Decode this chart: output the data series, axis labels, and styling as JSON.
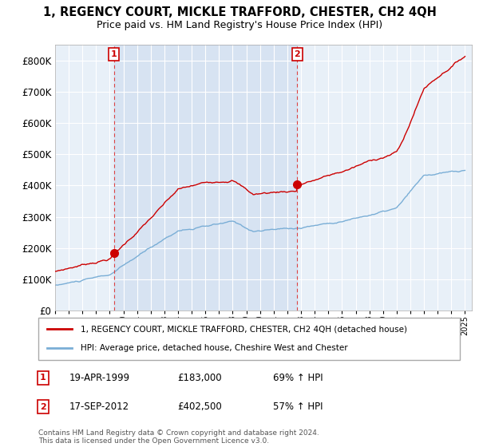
{
  "title": "1, REGENCY COURT, MICKLE TRAFFORD, CHESTER, CH2 4QH",
  "subtitle": "Price paid vs. HM Land Registry's House Price Index (HPI)",
  "sale1_date": "19-APR-1999",
  "sale1_price": 183000,
  "sale1_label": "69% ↑ HPI",
  "sale2_date": "17-SEP-2012",
  "sale2_price": 402500,
  "sale2_label": "57% ↑ HPI",
  "legend_line1": "1, REGENCY COURT, MICKLE TRAFFORD, CHESTER, CH2 4QH (detached house)",
  "legend_line2": "HPI: Average price, detached house, Cheshire West and Chester",
  "footnote": "Contains HM Land Registry data © Crown copyright and database right 2024.\nThis data is licensed under the Open Government Licence v3.0.",
  "red_color": "#cc0000",
  "blue_color": "#7aaed6",
  "plot_bg": "#e8f0f8",
  "ylim": [
    0,
    850000
  ],
  "yticks": [
    0,
    100000,
    200000,
    300000,
    400000,
    500000,
    600000,
    700000,
    800000
  ],
  "ytick_labels": [
    "£0",
    "£100K",
    "£200K",
    "£300K",
    "£400K",
    "£500K",
    "£600K",
    "£700K",
    "£800K"
  ],
  "sale1_x": 1999.3,
  "sale2_x": 2012.72,
  "xmin": 1995,
  "xmax": 2025.5
}
